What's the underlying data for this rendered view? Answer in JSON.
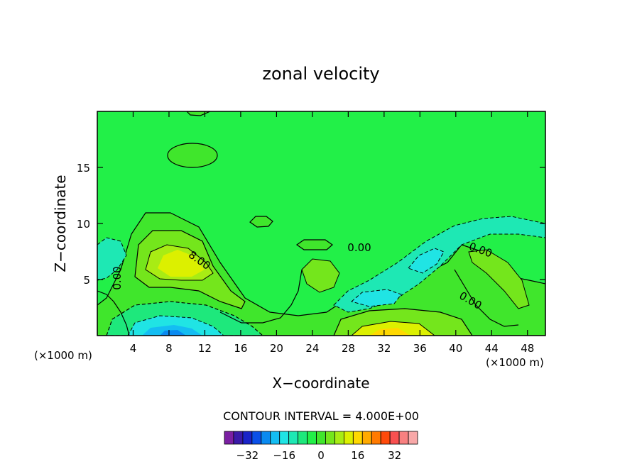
{
  "chart_data": {
    "type": "heatmap",
    "title": "zonal velocity",
    "xlabel": "X−coordinate",
    "ylabel": "Z−coordinate",
    "x_unit_label": "(×1000 m)",
    "z_unit_label": "(×1000 m)",
    "xlim": [
      0,
      50
    ],
    "ylim": [
      0,
      20
    ],
    "x_ticks": [
      4,
      8,
      12,
      16,
      20,
      24,
      28,
      32,
      36,
      40,
      44,
      48
    ],
    "y_ticks": [
      5,
      10,
      15
    ],
    "contour_interval_text": "CONTOUR INTERVAL = 4.000E+00",
    "contour_labels": [
      "0.00",
      "8.00",
      "0.00",
      "0.00",
      "0.00"
    ],
    "colorbar": {
      "levels": [
        -38,
        -34,
        -30,
        -26,
        -22,
        -18,
        -14,
        -10,
        -6,
        -2,
        2,
        6,
        10,
        14,
        18,
        22,
        26,
        30,
        34,
        38
      ],
      "colors": [
        "#7a1fa2",
        "#3a1aa8",
        "#1a24c8",
        "#0a50e8",
        "#0a8af0",
        "#14bdf2",
        "#20e4e4",
        "#1ee8b4",
        "#1ee87c",
        "#22f048",
        "#40e62c",
        "#74e61c",
        "#a8ec14",
        "#dcf000",
        "#ffd800",
        "#ffaa00",
        "#ff7a00",
        "#ff4a0a",
        "#f85050",
        "#f88080",
        "#f8a8a8"
      ],
      "tick_labels": [
        "−32",
        "−16",
        "0",
        "16",
        "32"
      ],
      "tick_values": [
        -32,
        -16,
        0,
        16,
        32
      ]
    },
    "grid": false
  }
}
